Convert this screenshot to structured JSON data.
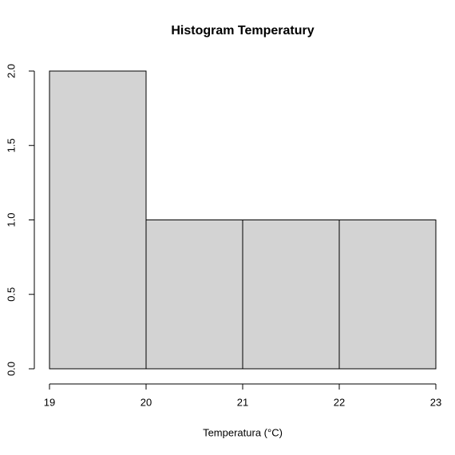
{
  "chart_data": {
    "type": "histogram",
    "title": "Histogram Temperatury",
    "xlabel": "Temperatura (°C)",
    "bins": [
      19,
      20,
      21,
      22,
      23
    ],
    "counts": [
      2,
      1,
      1,
      1
    ],
    "color": "#d3d3d3",
    "xlim": [
      19,
      23
    ],
    "xticks": [
      19,
      20,
      21,
      22,
      23
    ],
    "ylim": [
      0,
      2
    ],
    "yticks": [
      {
        "value": 0,
        "label": "0.0"
      },
      {
        "value": 0.5,
        "label": "0.5"
      },
      {
        "value": 1,
        "label": "1.0"
      },
      {
        "value": 1.5,
        "label": "1.5"
      },
      {
        "value": 2,
        "label": "2.0"
      }
    ]
  }
}
